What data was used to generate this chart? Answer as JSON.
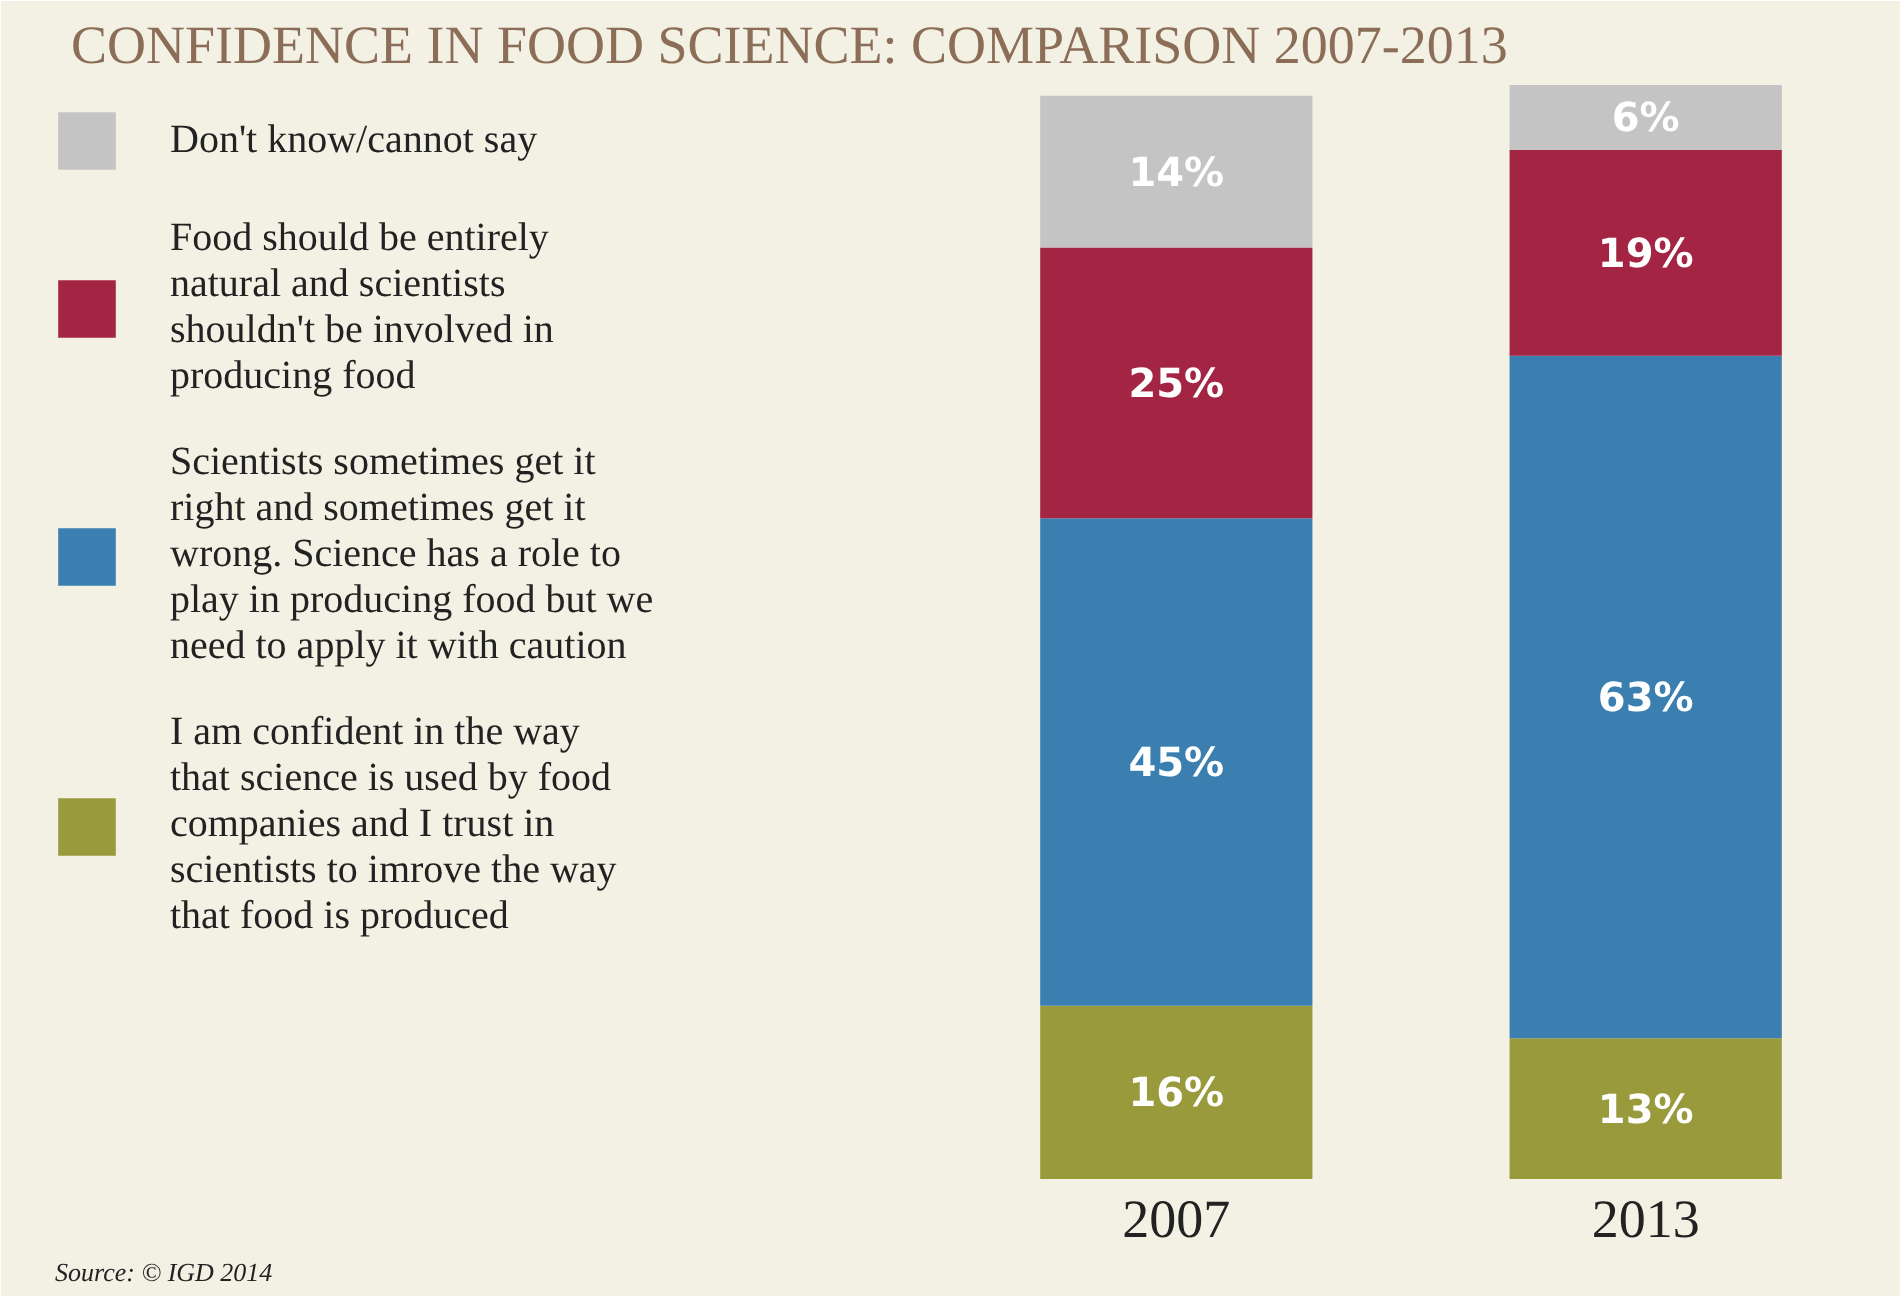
{
  "chart_data": {
    "type": "bar",
    "stacked": true,
    "title": "CONFIDENCE IN FOOD SCIENCE: COMPARISON 2007-2013",
    "categories": [
      "2007",
      "2013"
    ],
    "legend": "top left",
    "grid": false,
    "tick_labels": "x",
    "annotations": [
      "Source: © IGD 2014"
    ],
    "series": [
      {
        "name": "I am confident in the way that science is used by food companies and I trust in scientists to imrove the way that food is produced",
        "color": "#989a3c",
        "values": [
          16,
          13
        ],
        "value_labels": [
          "16%",
          "13%"
        ]
      },
      {
        "name": "Scientists sometimes get it right and sometimes get it wrong. Science has a role to play in producing food but we need to apply it with caution",
        "color": "#3a7fb0",
        "values": [
          45,
          63
        ],
        "value_labels": [
          "45%",
          "63%"
        ]
      },
      {
        "name": "Food should be entirely natural and scientists shouldn't be involved in producing food",
        "color": "#a32443",
        "values": [
          25,
          19
        ],
        "value_labels": [
          "25%",
          "19%"
        ]
      },
      {
        "name": "Don't know/cannot say",
        "color": "#c4c4c4",
        "values": [
          14,
          6
        ],
        "value_labels": [
          "14%",
          "6%"
        ]
      }
    ]
  }
}
